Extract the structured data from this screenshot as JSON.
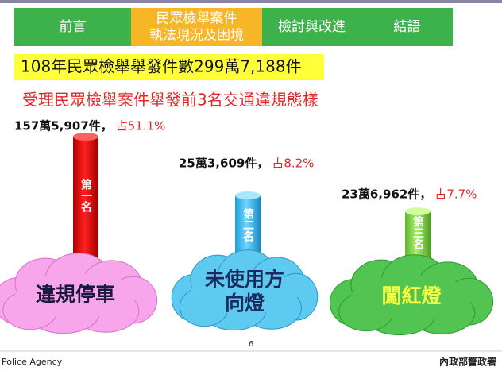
{
  "nav": {
    "tabs": [
      {
        "lines": [
          "前言"
        ]
      },
      {
        "lines": [
          "民眾檢舉案件",
          "執法現況及困境"
        ]
      },
      {
        "lines": [
          "檢討與改進"
        ]
      },
      {
        "lines": [
          "結語"
        ]
      }
    ]
  },
  "summary": "108年民眾檢舉舉發件數299萬7,188件",
  "subtitle": "受理民眾檢舉案件舉發前3名交通違規態樣",
  "items": [
    {
      "count": "157萬5,907件，",
      "share": "占51.1%",
      "rank": "第一名",
      "lines": [
        "違規停車"
      ]
    },
    {
      "count": "25萬3,609件，",
      "share": "占8.2%",
      "rank": "第二名",
      "lines": [
        "未使用方",
        "向燈"
      ]
    },
    {
      "count": "23萬6,962件，",
      "share": "占7.7%",
      "rank": "第三名",
      "lines": [
        "闖紅燈"
      ]
    }
  ],
  "footer": {
    "left": "Police Agency",
    "page": "6",
    "right": "內政部警政署"
  }
}
